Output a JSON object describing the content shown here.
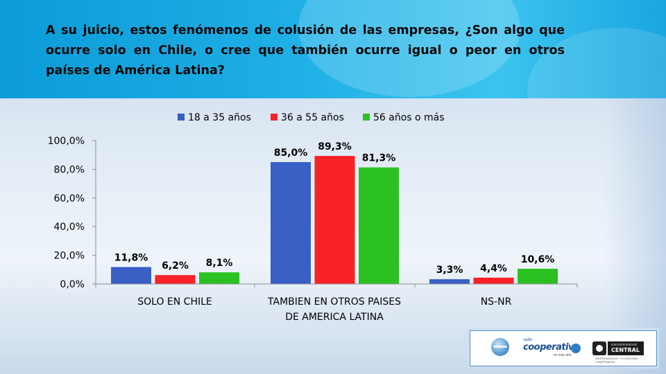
{
  "question": "A su juicio, estos fenómenos de colusión de las empresas,  ¿Son algo que ocurre solo en Chile, o cree que también  ocurre igual o peor en otros países de América Latina?",
  "logos": {
    "radio_small": "radio",
    "radio": "cooperativa",
    "radio_sub": "se más allá",
    "university_top": "UNIVERSIDAD",
    "university": "CENTRAL",
    "university_sub": "INDEPENDENCIA · PLURALISMO · COMPROMISO"
  },
  "chart_data": {
    "type": "bar",
    "title": "",
    "xlabel": "",
    "ylabel": "",
    "categories": [
      [
        "SOLO EN CHILE"
      ],
      [
        "TAMBIEN EN OTROS PAISES",
        "DE AMERICA LATINA"
      ],
      [
        "NS-NR"
      ]
    ],
    "series": [
      {
        "name": "18 a 35 años",
        "color": "#3860c5",
        "values": [
          11.8,
          85.0,
          3.3
        ],
        "labels": [
          "11,8%",
          "85,0%",
          "3,3%"
        ]
      },
      {
        "name": "36 a 55 años",
        "color": "#fa2127",
        "values": [
          6.2,
          89.3,
          4.4
        ],
        "labels": [
          "6,2%",
          "89,3%",
          "4,4%"
        ]
      },
      {
        "name": "56 años o más",
        "color": "#2bc123",
        "values": [
          8.1,
          81.3,
          10.6
        ],
        "labels": [
          "8,1%",
          "81,3%",
          "10,6%"
        ]
      }
    ],
    "ylim": [
      0,
      100
    ],
    "yticks": [
      0,
      20,
      40,
      60,
      80,
      100
    ],
    "ytick_labels": [
      "0,0%",
      "20,0%",
      "40,0%",
      "60,0%",
      "80,0%",
      "100,0%"
    ],
    "grid": false,
    "legend": "top"
  }
}
